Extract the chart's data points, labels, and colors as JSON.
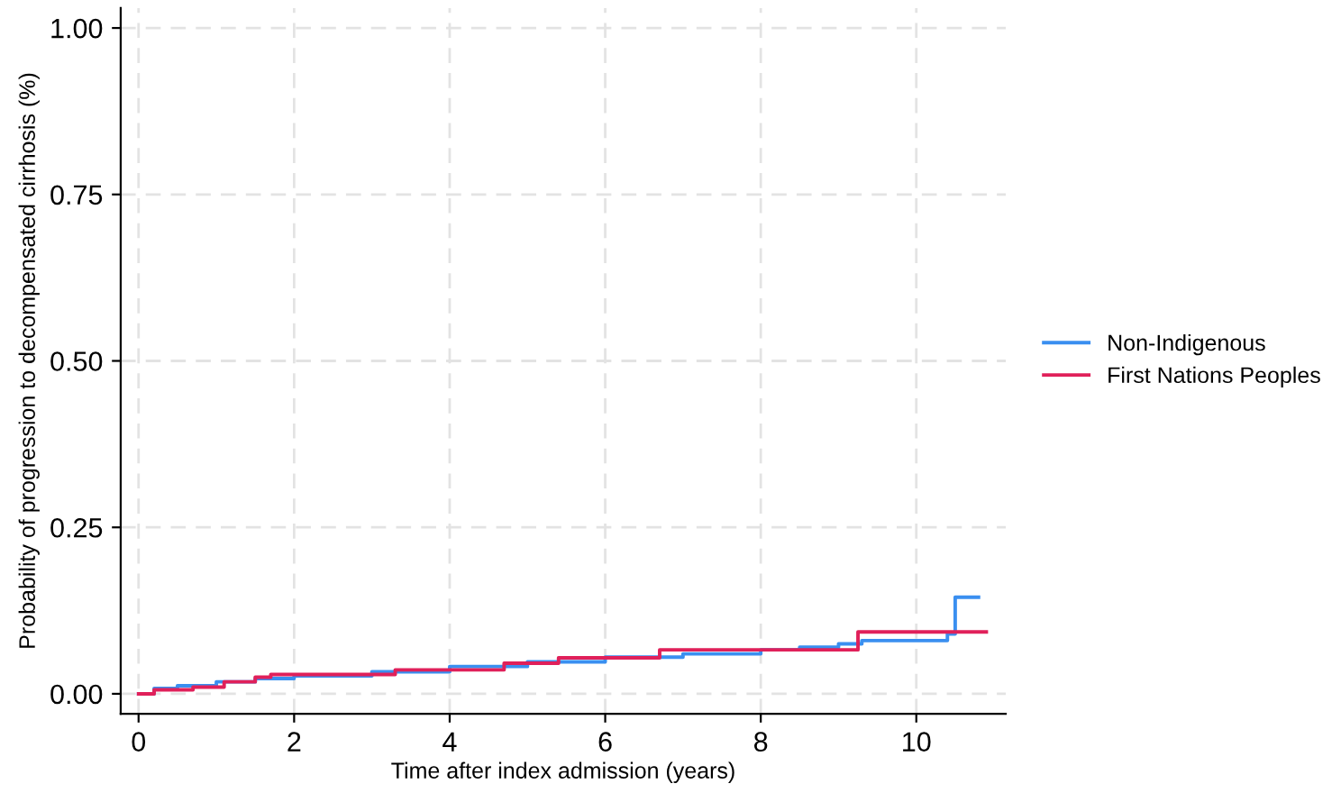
{
  "chart_data": {
    "type": "step",
    "xlabel": "Time after index admission (years)",
    "ylabel": "Probability of progression to decompensated cirrhosis (%)",
    "xlim": [
      -0.23,
      11.15
    ],
    "ylim": [
      -0.03,
      1.03
    ],
    "xticks": [
      0,
      2,
      4,
      6,
      8,
      10
    ],
    "yticks": [
      {
        "value": 0,
        "label": "0.00"
      },
      {
        "value": 0.25,
        "label": "0.25"
      },
      {
        "value": 0.5,
        "label": "0.50"
      },
      {
        "value": 0.75,
        "label": "0.75"
      },
      {
        "value": 1,
        "label": "1.00"
      }
    ],
    "grid": true,
    "legend": "right",
    "line_style": "solid",
    "series": [
      {
        "name": "Non-Indigenous",
        "color": "#3a8ff0",
        "x": [
          0,
          0.2,
          0.5,
          1,
          1.5,
          2,
          3,
          4,
          5,
          6,
          7,
          8,
          8.5,
          9,
          9.3,
          10.4,
          10.5,
          10.8
        ],
        "values": [
          0,
          0.008,
          0.012,
          0.018,
          0.023,
          0.027,
          0.033,
          0.041,
          0.048,
          0.055,
          0.06,
          0.066,
          0.07,
          0.075,
          0.08,
          0.09,
          0.145,
          0.145
        ]
      },
      {
        "name": "First Nations Peoples",
        "color": "#e0205a",
        "x": [
          0,
          0.2,
          0.7,
          1.1,
          1.5,
          1.7,
          3.3,
          4.7,
          5.4,
          6.7,
          9.25,
          10.9
        ],
        "values": [
          0,
          0.006,
          0.01,
          0.018,
          0.025,
          0.029,
          0.036,
          0.046,
          0.054,
          0.066,
          0.093,
          0.093
        ]
      }
    ]
  }
}
